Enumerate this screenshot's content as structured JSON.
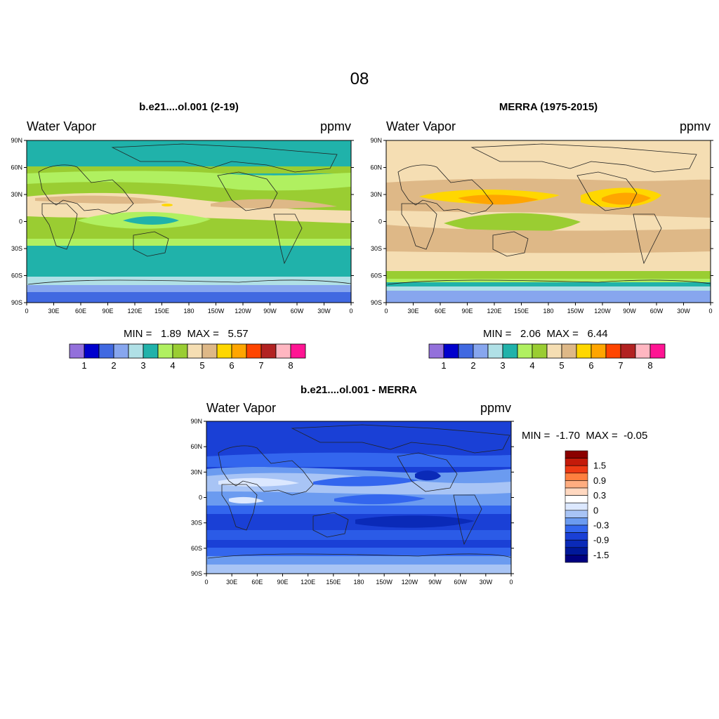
{
  "page": {
    "title": "08"
  },
  "panels": [
    {
      "id": "model",
      "title": "b.e21....ol.001 (2-19)",
      "variable": "Water Vapor",
      "units": "ppmv",
      "min_label": "MIN =",
      "min_value": "1.89",
      "max_label": "MAX =",
      "max_value": "5.57",
      "colorbar_labels": [
        "1",
        "2",
        "3",
        "4",
        "5",
        "6",
        "7",
        "8"
      ]
    },
    {
      "id": "merra",
      "title": "MERRA (1975-2015)",
      "variable": "Water Vapor",
      "units": "ppmv",
      "min_label": "MIN =",
      "min_value": "2.06",
      "max_label": "MAX =",
      "max_value": "6.44",
      "colorbar_labels": [
        "1",
        "2",
        "3",
        "4",
        "5",
        "6",
        "7",
        "8"
      ]
    },
    {
      "id": "diff",
      "title": "b.e21....ol.001 - MERRA",
      "variable": "Water Vapor",
      "units": "ppmv",
      "min_label": "MIN =",
      "min_value": "-1.70",
      "max_label": "MAX =",
      "max_value": "-0.05",
      "colorbar_labels": [
        "1.5",
        "0.9",
        "0.3",
        "0",
        "-0.3",
        "-0.9",
        "-1.5"
      ]
    }
  ],
  "axes": {
    "lat_ticks": [
      "90N",
      "60N",
      "30N",
      "0",
      "30S",
      "60S",
      "90S"
    ],
    "lon_ticks": [
      "0",
      "30E",
      "60E",
      "90E",
      "120E",
      "150E",
      "180",
      "150W",
      "120W",
      "90W",
      "60W",
      "30W",
      "0"
    ]
  },
  "colors": {
    "abs_scale": [
      "#9370db",
      "#0000cd",
      "#4169e1",
      "#87a6ee",
      "#b0e0e6",
      "#20b2aa",
      "#b0f060",
      "#9acd32",
      "#f5deb3",
      "#deb887",
      "#ffd700",
      "#ffa500",
      "#ff4500",
      "#b22222",
      "#ffb6c1",
      "#ff1493"
    ],
    "diff_scale": [
      "#8b0000",
      "#c41a0a",
      "#ee3a14",
      "#ff7f3f",
      "#ffad80",
      "#ffd8c0",
      "#ffffff",
      "#dce8ff",
      "#a8c4f5",
      "#6b9bf0",
      "#3366ee",
      "#1a40d6",
      "#0a2ab8",
      "#00189a",
      "#000080"
    ]
  }
}
